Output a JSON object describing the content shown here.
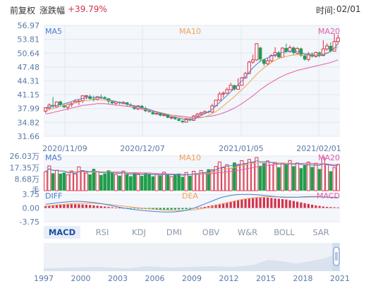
{
  "header": {
    "adjust_label": "前复权",
    "change_label": "涨跌幅",
    "change_value": "+39.79%",
    "time_label": "时间:",
    "time_value": "02/01"
  },
  "tabs": [
    {
      "label": "MACD",
      "active": true
    },
    {
      "label": "RSI",
      "active": false
    },
    {
      "label": "KDJ",
      "active": false
    },
    {
      "label": "DMI",
      "active": false
    },
    {
      "label": "OBV",
      "active": false
    },
    {
      "label": "W&R",
      "active": false
    },
    {
      "label": "BOLL",
      "active": false
    },
    {
      "label": "SAR",
      "active": false
    }
  ],
  "navigator": {
    "year_labels": [
      "1997",
      "2000",
      "2003",
      "2006",
      "2009",
      "2012",
      "2015",
      "2018",
      "2021"
    ]
  },
  "colors": {
    "up": "#d6304a",
    "down": "#1f9d4a",
    "ma5": "#4a7fd0",
    "ma10": "#f3a25a",
    "ma20": "#e35bb0",
    "grid": "#e3e7ee",
    "panel_bg": "#f3f6fa",
    "label": "#5a78a8"
  },
  "chart_data": [
    {
      "type": "candlestick",
      "name": "price",
      "ma_labels": [
        "MA5",
        "MA10",
        "MA20"
      ],
      "yticks": [
        56.97,
        53.81,
        50.64,
        47.48,
        44.31,
        41.15,
        37.99,
        34.82,
        31.66
      ],
      "ylim": [
        31.66,
        56.97
      ],
      "x_labels": [
        "2020/11/09",
        "2020/12/07",
        "2021/01/05",
        "2021/02/01"
      ],
      "candles": [
        [
          37.4,
          38.2,
          37.0,
          38.3
        ],
        [
          38.1,
          38.8,
          37.6,
          39.2
        ],
        [
          38.8,
          38.5,
          38.0,
          40.6
        ],
        [
          38.4,
          39.5,
          38.3,
          39.6
        ],
        [
          39.6,
          38.8,
          38.6,
          39.8
        ],
        [
          38.8,
          38.3,
          38.1,
          39.1
        ],
        [
          38.3,
          38.9,
          37.6,
          39.2
        ],
        [
          38.9,
          39.2,
          38.4,
          39.4
        ],
        [
          39.3,
          39.6,
          39.2,
          40.1
        ],
        [
          39.6,
          39.7,
          38.8,
          40.0
        ],
        [
          39.8,
          40.9,
          39.3,
          41.0
        ],
        [
          40.8,
          40.9,
          40.1,
          41.1
        ],
        [
          40.8,
          40.2,
          40.0,
          41.2
        ],
        [
          40.2,
          40.1,
          39.6,
          40.9
        ],
        [
          40.1,
          40.7,
          39.8,
          40.8
        ],
        [
          40.7,
          40.6,
          40.2,
          41.2
        ],
        [
          40.6,
          40.3,
          40.1,
          40.8
        ],
        [
          40.3,
          39.6,
          39.1,
          40.4
        ],
        [
          39.6,
          39.2,
          38.9,
          39.7
        ],
        [
          39.2,
          39.5,
          38.7,
          39.7
        ],
        [
          39.5,
          39.2,
          38.9,
          39.6
        ],
        [
          39.1,
          39.4,
          39.0,
          39.7
        ],
        [
          39.4,
          38.9,
          38.5,
          39.5
        ],
        [
          38.9,
          38.6,
          38.4,
          39.2
        ],
        [
          38.6,
          37.9,
          37.7,
          38.8
        ],
        [
          37.9,
          38.6,
          37.6,
          38.8
        ],
        [
          38.6,
          38.1,
          37.7,
          38.8
        ],
        [
          38.1,
          37.4,
          37.2,
          38.4
        ],
        [
          37.4,
          37.2,
          37.1,
          37.6
        ],
        [
          37.2,
          36.7,
          36.6,
          37.4
        ],
        [
          36.7,
          36.9,
          36.6,
          37.1
        ],
        [
          36.9,
          36.4,
          36.2,
          37.0
        ],
        [
          36.4,
          36.6,
          36.2,
          36.8
        ],
        [
          36.6,
          35.9,
          35.8,
          36.8
        ],
        [
          35.9,
          36.0,
          35.5,
          36.1
        ],
        [
          36.0,
          35.6,
          35.4,
          36.2
        ],
        [
          35.6,
          35.2,
          35.1,
          35.8
        ],
        [
          35.2,
          34.9,
          34.6,
          35.3
        ],
        [
          34.9,
          35.6,
          34.8,
          35.8
        ],
        [
          35.6,
          35.3,
          35.1,
          35.9
        ],
        [
          35.3,
          36.3,
          35.2,
          36.5
        ],
        [
          36.3,
          36.7,
          36.1,
          37.0
        ],
        [
          36.7,
          37.0,
          36.4,
          37.3
        ],
        [
          37.0,
          37.3,
          36.8,
          37.6
        ],
        [
          37.3,
          37.2,
          36.9,
          37.5
        ],
        [
          37.2,
          38.6,
          37.0,
          39.1
        ],
        [
          38.6,
          39.9,
          38.5,
          40.0
        ],
        [
          39.9,
          41.3,
          39.8,
          41.8
        ],
        [
          41.3,
          41.5,
          40.5,
          41.9
        ],
        [
          41.5,
          42.3,
          41.3,
          42.8
        ],
        [
          42.3,
          43.3,
          42.2,
          43.9
        ],
        [
          43.3,
          42.4,
          42.1,
          43.5
        ],
        [
          42.4,
          43.2,
          42.3,
          44.9
        ],
        [
          43.3,
          45.0,
          43.2,
          45.2
        ],
        [
          45.0,
          46.0,
          44.8,
          46.4
        ],
        [
          46.0,
          48.6,
          45.8,
          48.9
        ],
        [
          48.6,
          49.1,
          48.2,
          50.3
        ],
        [
          49.1,
          52.8,
          48.9,
          52.9
        ],
        [
          51.9,
          49.2,
          48.6,
          52.1
        ],
        [
          49.2,
          48.2,
          47.7,
          49.4
        ],
        [
          48.2,
          48.9,
          47.9,
          49.5
        ],
        [
          48.9,
          50.1,
          48.6,
          50.4
        ],
        [
          50.1,
          50.8,
          49.7,
          52.0
        ],
        [
          50.8,
          49.7,
          49.4,
          51.1
        ],
        [
          49.7,
          51.8,
          49.6,
          52.0
        ],
        [
          51.8,
          51.0,
          50.6,
          52.8
        ],
        [
          51.0,
          51.9,
          50.8,
          52.4
        ],
        [
          51.9,
          50.7,
          50.1,
          52.2
        ],
        [
          50.6,
          51.7,
          50.4,
          52.0
        ],
        [
          51.7,
          50.1,
          49.8,
          51.9
        ],
        [
          50.1,
          49.2,
          48.9,
          50.4
        ],
        [
          49.2,
          50.5,
          48.8,
          50.9
        ],
        [
          50.5,
          49.9,
          49.6,
          50.8
        ],
        [
          49.9,
          50.8,
          49.6,
          51.0
        ],
        [
          50.8,
          50.1,
          49.7,
          51.0
        ],
        [
          50.1,
          51.6,
          49.9,
          53.6
        ],
        [
          51.6,
          52.3,
          51.2,
          52.9
        ],
        [
          52.3,
          51.1,
          50.9,
          53.1
        ],
        [
          51.1,
          53.3,
          51.0,
          55.2
        ],
        [
          53.3,
          54.1,
          52.7,
          54.9
        ]
      ],
      "ma5": [
        38.0,
        38.4,
        38.6,
        38.7,
        38.9,
        39.1,
        39.3,
        39.6,
        39.9,
        40.1,
        40.3,
        40.4,
        40.5,
        40.5,
        40.5,
        40.4,
        40.2,
        40.0,
        39.8,
        39.6,
        39.4,
        39.2,
        39.0,
        38.8,
        38.6,
        38.4,
        38.2,
        38.0,
        37.8,
        37.5,
        37.2,
        37.0,
        36.8,
        36.5,
        36.2,
        36.0,
        35.8,
        35.6,
        35.4,
        35.4,
        35.6,
        36.0,
        36.4,
        36.8,
        37.2,
        37.8,
        38.6,
        39.4,
        40.2,
        41.0,
        41.8,
        42.6,
        43.4,
        44.3,
        45.3,
        46.3,
        47.3,
        48.1,
        48.8,
        49.2,
        49.6,
        50.0,
        50.3,
        50.6,
        50.8,
        51.0,
        51.1,
        51.1,
        51.0,
        50.8,
        50.5,
        50.2,
        50.0,
        50.0,
        50.1,
        50.3,
        50.6,
        51.0,
        51.8,
        52.8
      ],
      "ma10": [
        37.6,
        37.8,
        38.0,
        38.2,
        38.5,
        38.7,
        38.9,
        39.1,
        39.3,
        39.5,
        39.7,
        39.8,
        39.9,
        40.0,
        40.0,
        40.0,
        39.9,
        39.8,
        39.7,
        39.5,
        39.3,
        39.1,
        38.9,
        38.7,
        38.5,
        38.3,
        38.1,
        37.9,
        37.7,
        37.5,
        37.3,
        37.1,
        36.9,
        36.7,
        36.5,
        36.3,
        36.1,
        35.9,
        35.8,
        35.7,
        35.7,
        35.8,
        35.9,
        36.1,
        36.4,
        36.8,
        37.3,
        37.9,
        38.6,
        39.3,
        40.0,
        40.7,
        41.5,
        42.3,
        43.1,
        44.0,
        44.9,
        45.8,
        46.6,
        47.3,
        47.9,
        48.5,
        49.0,
        49.4,
        49.7,
        49.9,
        50.1,
        50.2,
        50.3,
        50.3,
        50.3,
        50.3,
        50.3,
        50.3,
        50.4,
        50.5,
        50.7,
        51.0,
        51.5,
        52.1
      ],
      "ma20": [
        36.8,
        36.9,
        37.1,
        37.3,
        37.5,
        37.7,
        37.9,
        38.1,
        38.3,
        38.5,
        38.7,
        38.8,
        38.9,
        39.0,
        39.1,
        39.1,
        39.1,
        39.0,
        38.9,
        38.8,
        38.7,
        38.6,
        38.5,
        38.4,
        38.2,
        38.0,
        37.9,
        37.7,
        37.5,
        37.4,
        37.2,
        37.0,
        36.8,
        36.7,
        36.5,
        36.4,
        36.3,
        36.2,
        36.1,
        36.0,
        36.0,
        36.0,
        36.0,
        36.1,
        36.2,
        36.3,
        36.5,
        36.7,
        37.0,
        37.3,
        37.7,
        38.1,
        38.6,
        39.1,
        39.7,
        40.3,
        40.9,
        41.6,
        42.3,
        42.9,
        43.5,
        44.0,
        44.5,
        45.0,
        45.4,
        45.8,
        46.1,
        46.4,
        46.7,
        46.9,
        47.1,
        47.3,
        47.5,
        47.7,
        47.9,
        48.1,
        48.3,
        48.5,
        48.8,
        49.1
      ]
    },
    {
      "type": "bar",
      "name": "volume",
      "ma_labels": [
        "MA5",
        "MA10",
        "MA20"
      ],
      "yticks": [
        "26.03万",
        "17.35万",
        "8.68万"
      ],
      "unit": "手",
      "ylim": [
        0,
        26.03
      ],
      "values": [
        14.2,
        18.6,
        13.1,
        15.4,
        12.8,
        13.6,
        11.9,
        14.8,
        12.6,
        17.9,
        15.1,
        13.3,
        12.2,
        16.4,
        14.1,
        11.8,
        12.9,
        15.3,
        13.6,
        12.1,
        11.3,
        14.7,
        12.4,
        10.9,
        13.8,
        12.2,
        11.1,
        13.4,
        12.7,
        10.8,
        12.3,
        11.5,
        13.9,
        12.1,
        10.6,
        11.8,
        12.9,
        10.4,
        13.7,
        11.2,
        14.6,
        12.8,
        15.2,
        13.4,
        16.1,
        15.7,
        18.2,
        21.6,
        17.3,
        19.5,
        16.8,
        21.2,
        19.7,
        22.6,
        20.4,
        23.5,
        21.3,
        24.9,
        18.7,
        20.6,
        22.4,
        19.3,
        21.1,
        17.6,
        20.3,
        19.8,
        22.7,
        18.4,
        20.8,
        16.9,
        19.2,
        21.5,
        17.8,
        20.6,
        16.3,
        24.8,
        19.4,
        14.6,
        17.2,
        19.8
      ]
    },
    {
      "type": "macd",
      "name": "MACD",
      "line_labels": [
        "DIFF",
        "DEA",
        "MACD"
      ],
      "yticks": [
        "3.75",
        "0.00",
        "-3.75"
      ],
      "ylim": [
        -3.75,
        3.75
      ],
      "hist": [
        0.5,
        0.6,
        0.7,
        0.8,
        0.85,
        0.9,
        0.95,
        1.0,
        1.0,
        1.0,
        0.95,
        0.9,
        0.8,
        0.7,
        0.6,
        0.5,
        0.4,
        0.3,
        0.2,
        0.1,
        0.05,
        0.0,
        -0.05,
        -0.1,
        -0.15,
        -0.2,
        -0.25,
        -0.3,
        -0.32,
        -0.35,
        -0.38,
        -0.4,
        -0.42,
        -0.45,
        -0.45,
        -0.43,
        -0.4,
        -0.35,
        -0.3,
        -0.2,
        -0.1,
        0.0,
        0.15,
        0.3,
        0.5,
        0.7,
        0.9,
        1.1,
        1.3,
        1.5,
        1.7,
        1.9,
        2.1,
        2.3,
        2.4,
        2.55,
        2.65,
        2.75,
        2.8,
        2.85,
        2.8,
        2.7,
        2.6,
        2.5,
        2.4,
        2.3,
        2.1,
        1.9,
        1.7,
        1.5,
        1.3,
        1.1,
        0.9,
        0.7,
        0.55,
        0.4,
        0.3,
        0.25,
        0.2,
        0.15
      ],
      "diff": [
        1.0,
        1.1,
        1.25,
        1.4,
        1.5,
        1.6,
        1.7,
        1.75,
        1.8,
        1.8,
        1.75,
        1.7,
        1.6,
        1.5,
        1.35,
        1.2,
        1.0,
        0.8,
        0.6,
        0.4,
        0.2,
        0.0,
        -0.15,
        -0.3,
        -0.45,
        -0.55,
        -0.65,
        -0.75,
        -0.85,
        -0.92,
        -1.0,
        -1.05,
        -1.1,
        -1.12,
        -1.1,
        -1.05,
        -0.95,
        -0.8,
        -0.6,
        -0.35,
        -0.05,
        0.3,
        0.7,
        1.1,
        1.5,
        1.9,
        2.3,
        2.7,
        3.0,
        3.2,
        3.4,
        3.55,
        3.65,
        3.7,
        3.72,
        3.7,
        3.65,
        3.6,
        3.5,
        3.4,
        3.3,
        3.2,
        3.1,
        3.0,
        2.95,
        2.9,
        2.9,
        2.9,
        2.95,
        3.0,
        3.05,
        3.1,
        3.1,
        3.1,
        3.05,
        3.0,
        2.95,
        2.9,
        2.85,
        2.8
      ],
      "dea": [
        0.5,
        0.6,
        0.7,
        0.8,
        0.9,
        1.0,
        1.1,
        1.15,
        1.2,
        1.25,
        1.3,
        1.3,
        1.28,
        1.25,
        1.2,
        1.13,
        1.05,
        0.96,
        0.86,
        0.75,
        0.64,
        0.52,
        0.4,
        0.28,
        0.17,
        0.06,
        -0.05,
        -0.15,
        -0.25,
        -0.34,
        -0.42,
        -0.5,
        -0.57,
        -0.63,
        -0.67,
        -0.7,
        -0.72,
        -0.7,
        -0.66,
        -0.6,
        -0.5,
        -0.37,
        -0.22,
        -0.05,
        0.15,
        0.38,
        0.62,
        0.88,
        1.14,
        1.4,
        1.65,
        1.9,
        2.12,
        2.32,
        2.5,
        2.65,
        2.77,
        2.87,
        2.95,
        3.0,
        3.03,
        3.04,
        3.04,
        3.03,
        3.01,
        2.99,
        2.97,
        2.96,
        2.95,
        2.95,
        2.95,
        2.96,
        2.97,
        2.98,
        2.98,
        2.98,
        2.97,
        2.96,
        2.95,
        2.93
      ]
    }
  ]
}
